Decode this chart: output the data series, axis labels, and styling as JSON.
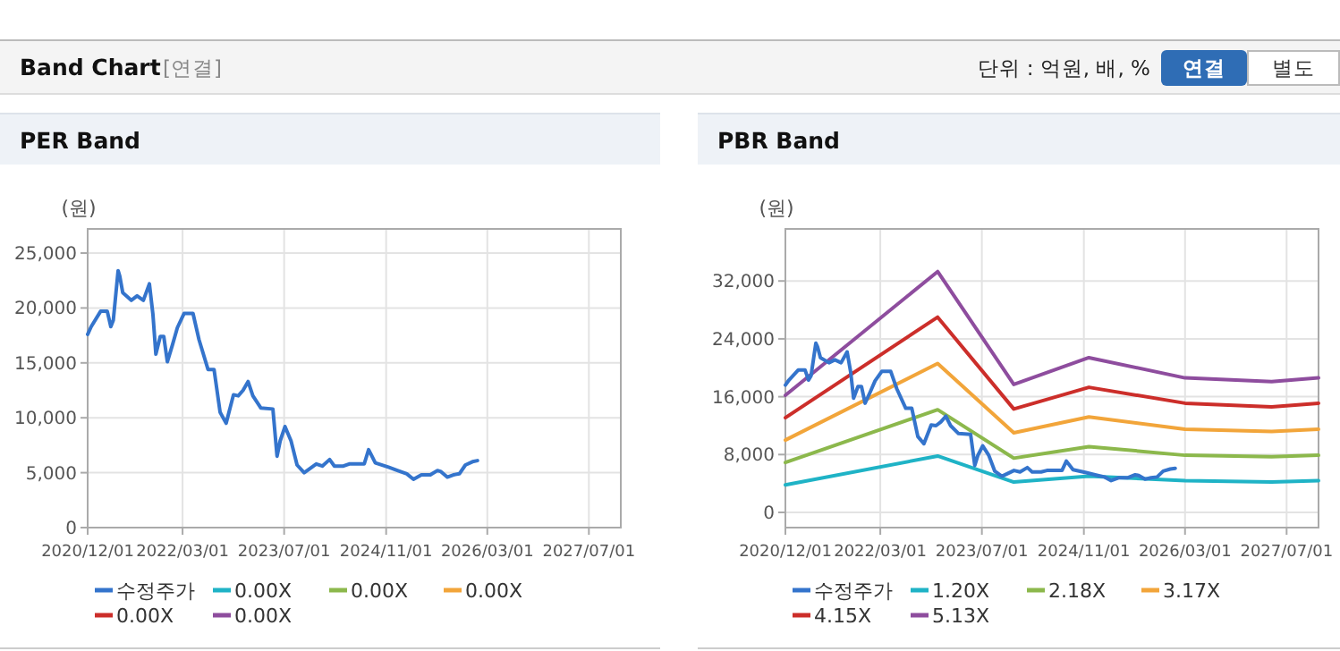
{
  "chart_data": [
    {
      "type": "other",
      "title": "Band Chart",
      "subtitle": "[연결]",
      "annotations": [
        "단위 : 억원, 배, %",
        "연결",
        "별도"
      ]
    },
    {
      "type": "line",
      "title": "PER Band",
      "ylabel": "(원)",
      "xlim": [
        "2020-12-01",
        "2027-12-01"
      ],
      "xticks": [
        {
          "value": "2020-12-01",
          "label": "2020/12/01"
        },
        {
          "value": "2022-03-01",
          "label": "2022/03/01"
        },
        {
          "value": "2023-07-01",
          "label": "2023/07/01"
        },
        {
          "value": "2024-11-01",
          "label": "2024/11/01"
        },
        {
          "value": "2026-03-01",
          "label": "2026/03/01"
        },
        {
          "value": "2027-07-01",
          "label": "2027/07/01"
        }
      ],
      "ylim": [
        0,
        27200
      ],
      "yticks": [
        0,
        {
          "value": 5000,
          "label": "5,000"
        },
        {
          "value": 10000,
          "label": "10,000"
        },
        {
          "value": 15000,
          "label": "15,000"
        },
        {
          "value": 20000,
          "label": "20,000"
        },
        {
          "value": 25000,
          "label": "25,000"
        }
      ],
      "grid": true,
      "legend": "bottom",
      "series": [
        {
          "name": "수정주가",
          "color": "#3474cc",
          "x": [
            "2020-12-01",
            "2020-12-18",
            "2021-02-01",
            "2021-03-05",
            "2021-03-22",
            "2021-04-03",
            "2021-04-26",
            "2021-05-04",
            "2021-05-18",
            "2021-06-28",
            "2021-07-26",
            "2021-08-25",
            "2021-09-23",
            "2021-10-10",
            "2021-10-24",
            "2021-11-14",
            "2021-12-01",
            "2021-12-18",
            "2022-01-11",
            "2022-02-04",
            "2022-03-08",
            "2022-04-20",
            "2022-05-19",
            "2022-07-01",
            "2022-07-30",
            "2022-08-28",
            "2022-09-26",
            "2022-10-31",
            "2022-11-23",
            "2022-12-16",
            "2023-01-09",
            "2023-02-01",
            "2023-03-11",
            "2023-05-08",
            "2023-05-28",
            "2023-06-12",
            "2023-07-05",
            "2023-08-03",
            "2023-09-01",
            "2023-10-05",
            "2023-12-02",
            "2023-12-31",
            "2024-02-04",
            "2024-02-27",
            "2024-04-10",
            "2024-05-08",
            "2024-07-19",
            "2024-08-09",
            "2024-09-10",
            "2024-11-12",
            "2024-12-25",
            "2025-02-08",
            "2025-03-12",
            "2025-04-19",
            "2025-06-01",
            "2025-07-05",
            "2025-07-22",
            "2025-08-21",
            "2025-09-19",
            "2025-10-18",
            "2025-11-16",
            "2025-12-20",
            "2026-01-13"
          ],
          "values": [
            17600,
            18300,
            19700,
            19700,
            18300,
            18900,
            23400,
            22900,
            21400,
            20700,
            21100,
            20700,
            22200,
            19400,
            15800,
            17400,
            17400,
            15100,
            16600,
            18200,
            19500,
            19500,
            17100,
            14400,
            14400,
            10500,
            9500,
            12100,
            12000,
            12500,
            13300,
            12000,
            10900,
            10800,
            6500,
            7900,
            9200,
            7900,
            5700,
            5000,
            5800,
            5600,
            6200,
            5600,
            5600,
            5800,
            5800,
            7100,
            5900,
            5500,
            5200,
            4900,
            4400,
            4800,
            4800,
            5200,
            5100,
            4600,
            4800,
            4900,
            5700,
            6000,
            6100
          ]
        },
        {
          "name": "0.00X",
          "color": "#1fb3c6"
        },
        {
          "name": "0.00X",
          "color": "#8cb84c"
        },
        {
          "name": "0.00X",
          "color": "#f2a53a"
        },
        {
          "name": "0.00X",
          "color": "#cc2e2a"
        },
        {
          "name": "0.00X",
          "color": "#8e4d9e"
        }
      ]
    },
    {
      "type": "line",
      "title": "PBR Band",
      "ylabel": "(원)",
      "xlim": [
        "2020-12-01",
        "2027-12-01"
      ],
      "xticks": [
        {
          "value": "2020-12-01",
          "label": "2020/12/01"
        },
        {
          "value": "2022-03-01",
          "label": "2022/03/01"
        },
        {
          "value": "2023-07-01",
          "label": "2023/07/01"
        },
        {
          "value": "2024-11-01",
          "label": "2024/11/01"
        },
        {
          "value": "2026-03-01",
          "label": "2026/03/01"
        },
        {
          "value": "2027-07-01",
          "label": "2027/07/01"
        }
      ],
      "ylim": [
        -2100,
        39200
      ],
      "yticks": [
        0,
        {
          "value": 8000,
          "label": "8,000"
        },
        {
          "value": 16000,
          "label": "16,000"
        },
        {
          "value": 24000,
          "label": "24,000"
        },
        {
          "value": 32000,
          "label": "32,000"
        }
      ],
      "grid": true,
      "legend": "bottom",
      "series": [
        {
          "name": "수정주가",
          "color": "#3474cc",
          "x": [
            "2020-12-01",
            "2020-12-18",
            "2021-02-01",
            "2021-03-05",
            "2021-03-22",
            "2021-04-03",
            "2021-04-26",
            "2021-05-04",
            "2021-05-18",
            "2021-06-28",
            "2021-07-26",
            "2021-08-25",
            "2021-09-23",
            "2021-10-10",
            "2021-10-24",
            "2021-11-14",
            "2021-12-01",
            "2021-12-18",
            "2022-01-11",
            "2022-02-04",
            "2022-03-08",
            "2022-04-20",
            "2022-05-19",
            "2022-07-01",
            "2022-07-30",
            "2022-08-28",
            "2022-09-26",
            "2022-10-31",
            "2022-11-23",
            "2022-12-16",
            "2023-01-09",
            "2023-02-01",
            "2023-03-11",
            "2023-05-08",
            "2023-05-28",
            "2023-06-12",
            "2023-07-05",
            "2023-08-03",
            "2023-09-01",
            "2023-10-05",
            "2023-12-02",
            "2023-12-31",
            "2024-02-04",
            "2024-02-27",
            "2024-04-10",
            "2024-05-08",
            "2024-07-19",
            "2024-08-09",
            "2024-09-10",
            "2024-11-12",
            "2024-12-25",
            "2025-02-08",
            "2025-03-12",
            "2025-04-19",
            "2025-06-01",
            "2025-07-05",
            "2025-07-22",
            "2025-08-21",
            "2025-09-19",
            "2025-10-18",
            "2025-11-16",
            "2025-12-20",
            "2026-01-13"
          ],
          "values": [
            17600,
            18300,
            19700,
            19700,
            18300,
            18900,
            23400,
            22900,
            21400,
            20700,
            21100,
            20700,
            22200,
            19400,
            15800,
            17400,
            17400,
            15100,
            16600,
            18200,
            19500,
            19500,
            17100,
            14400,
            14400,
            10500,
            9500,
            12100,
            12000,
            12500,
            13300,
            12000,
            10900,
            10800,
            6500,
            7900,
            9200,
            7900,
            5700,
            5000,
            5800,
            5600,
            6200,
            5600,
            5600,
            5800,
            5800,
            7100,
            5900,
            5500,
            5200,
            4900,
            4400,
            4800,
            4800,
            5200,
            5100,
            4600,
            4800,
            4900,
            5700,
            6000,
            6100
          ]
        },
        {
          "name": "1.20X",
          "color": "#1fb3c6",
          "x": [
            "2020-12-01",
            "2022-12-01",
            "2023-12-01",
            "2024-11-25",
            "2026-03-01",
            "2027-04-20",
            "2027-12-01"
          ],
          "values": [
            3800,
            7800,
            4200,
            5000,
            4400,
            4200,
            4400
          ]
        },
        {
          "name": "2.18X",
          "color": "#8cb84c",
          "x": [
            "2020-12-01",
            "2022-12-01",
            "2023-12-01",
            "2024-11-25",
            "2026-03-01",
            "2027-04-20",
            "2027-12-01"
          ],
          "values": [
            6900,
            14200,
            7500,
            9100,
            7900,
            7700,
            7900
          ]
        },
        {
          "name": "3.17X",
          "color": "#f2a53a",
          "x": [
            "2020-12-01",
            "2022-12-01",
            "2023-12-01",
            "2024-11-25",
            "2026-03-01",
            "2027-04-20",
            "2027-12-01"
          ],
          "values": [
            10000,
            20600,
            11000,
            13200,
            11500,
            11200,
            11500
          ]
        },
        {
          "name": "4.15X",
          "color": "#cc2e2a",
          "x": [
            "2020-12-01",
            "2022-12-01",
            "2023-12-01",
            "2024-11-25",
            "2026-03-01",
            "2027-04-20",
            "2027-12-01"
          ],
          "values": [
            13100,
            27000,
            14300,
            17300,
            15100,
            14600,
            15100
          ]
        },
        {
          "name": "5.13X",
          "color": "#8e4d9e",
          "x": [
            "2020-12-01",
            "2022-12-01",
            "2023-12-01",
            "2024-11-25",
            "2026-03-01",
            "2027-04-20",
            "2027-12-01"
          ],
          "values": [
            16200,
            33300,
            17700,
            21400,
            18600,
            18100,
            18600
          ]
        }
      ]
    }
  ]
}
